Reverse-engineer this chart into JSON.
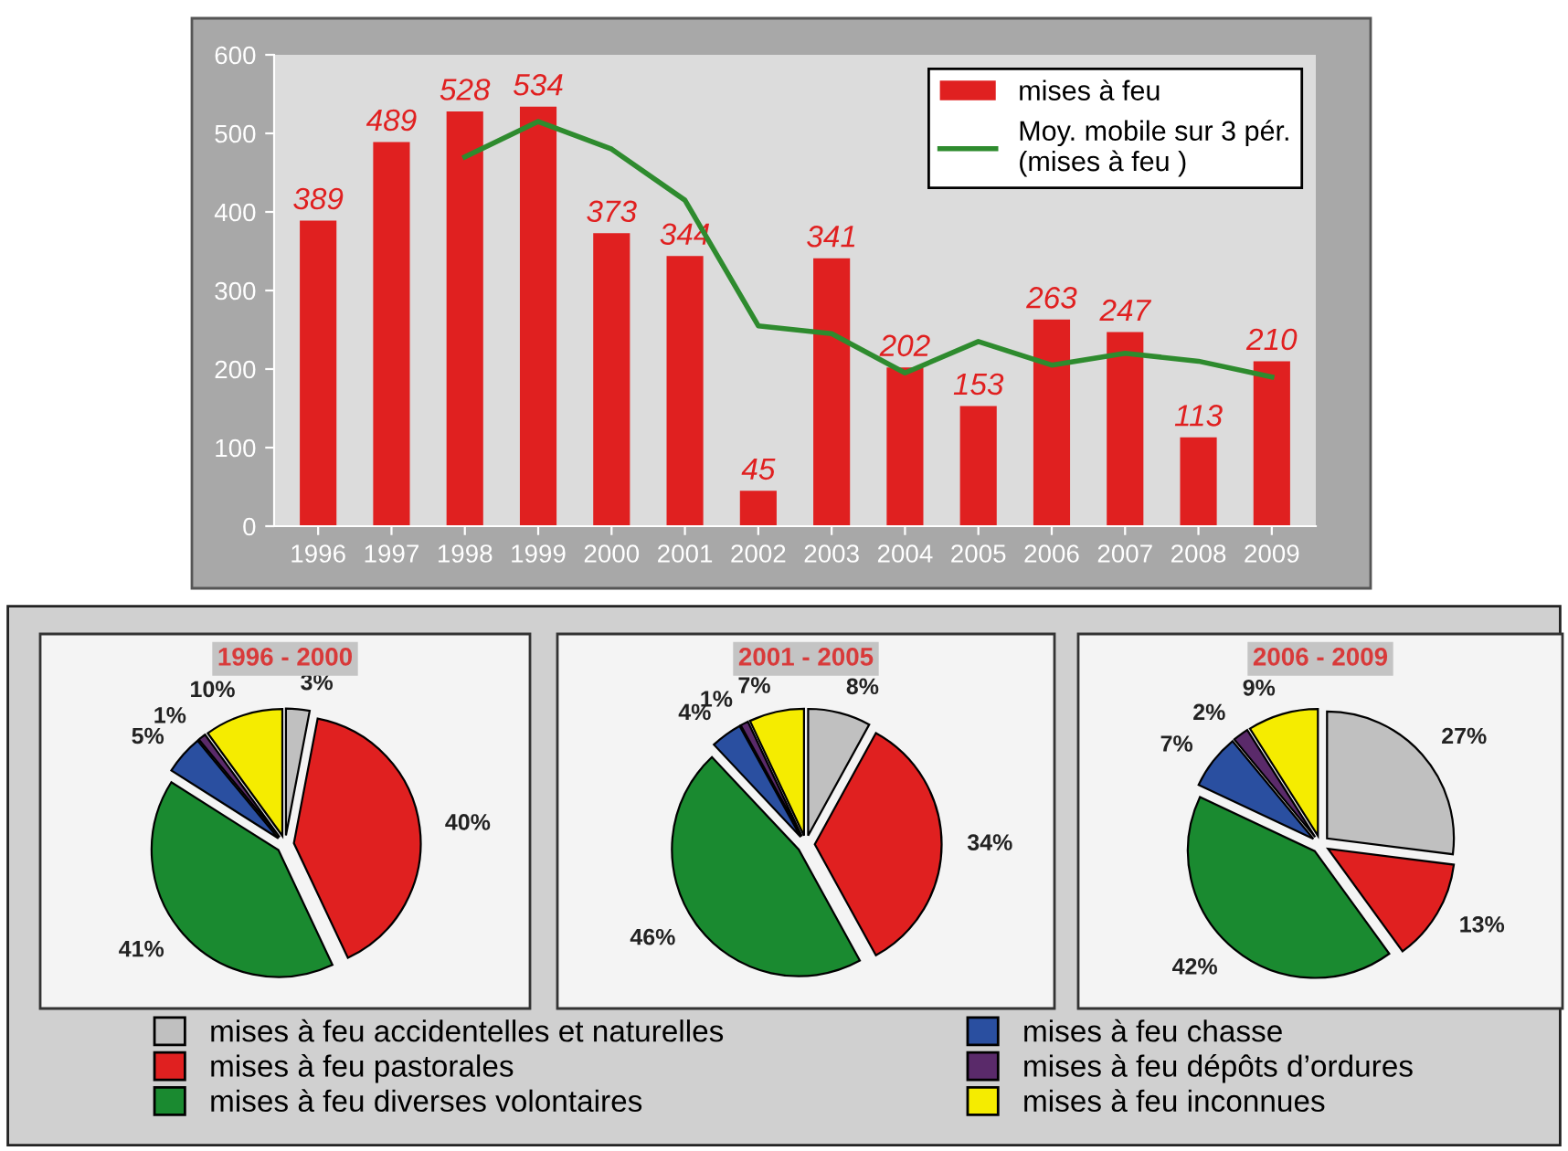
{
  "chart_data": [
    {
      "type": "bar",
      "categories": [
        "1996",
        "1997",
        "1998",
        "1999",
        "2000",
        "2001",
        "2002",
        "2003",
        "2004",
        "2005",
        "2006",
        "2007",
        "2008",
        "2009"
      ],
      "series": [
        {
          "name": "mises à feu",
          "type": "bar",
          "color": "#e02020",
          "values": [
            389,
            489,
            528,
            534,
            373,
            344,
            45,
            341,
            202,
            153,
            263,
            247,
            113,
            210
          ],
          "value_labels": [
            "389",
            "489",
            "528",
            "534",
            "373",
            "344",
            "45",
            "341",
            "202",
            "153",
            "263",
            "247",
            "113",
            "210"
          ]
        },
        {
          "name": "Moy. mobile sur 3 pér.\n(mises à feu )",
          "type": "line",
          "color": "#2e8b2e",
          "values": [
            null,
            null,
            470,
            515,
            480,
            415,
            255,
            245,
            195,
            235,
            205,
            220,
            210,
            190
          ]
        }
      ],
      "ylim": [
        0,
        600
      ],
      "yticks": [
        0,
        100,
        200,
        300,
        400,
        500,
        600
      ],
      "legend": "top right",
      "grid": false
    },
    {
      "type": "pie",
      "title": "1996 - 2000",
      "legend": "bottom",
      "categories": [
        "mises à feu accidentelles et naturelles",
        "mises à feu pastorales",
        "mises à feu diverses volontaires",
        "mises à feu chasse",
        "mises à feu dépôts d’ordures",
        "mises à feu inconnues"
      ],
      "values": [
        3,
        40,
        41,
        5,
        1,
        10
      ],
      "value_labels": [
        "3%",
        "40%",
        "41%",
        "5%",
        "1%",
        "10%"
      ],
      "colors": [
        "#c0c0c0",
        "#e02020",
        "#1a8a30",
        "#2a4fa0",
        "#5a2a6a",
        "#f5ec00"
      ]
    },
    {
      "type": "pie",
      "title": "2001 - 2005",
      "categories": [
        null,
        null,
        null,
        null,
        null,
        null
      ],
      "values": [
        8,
        34,
        46,
        4,
        1,
        7
      ],
      "value_labels": [
        "8%",
        "34%",
        "46%",
        "4%",
        "1%",
        "7%"
      ],
      "colors": [
        "#c0c0c0",
        "#e02020",
        "#1a8a30",
        "#2a4fa0",
        "#5a2a6a",
        "#f5ec00"
      ]
    },
    {
      "type": "pie",
      "title": "2006 - 2009",
      "categories": [
        null,
        null,
        null,
        null,
        null,
        null
      ],
      "values": [
        27,
        13,
        42,
        7,
        2,
        9
      ],
      "value_labels": [
        "27%",
        "13%",
        "42%",
        "7%",
        "2%",
        "9%"
      ],
      "colors": [
        "#c0c0c0",
        "#e02020",
        "#1a8a30",
        "#2a4fa0",
        "#5a2a6a",
        "#f5ec00"
      ]
    }
  ]
}
